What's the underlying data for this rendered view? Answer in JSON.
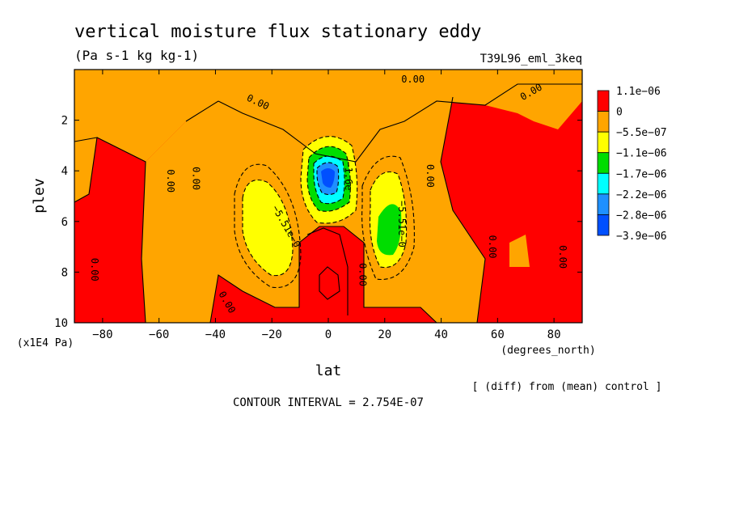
{
  "chart_data": {
    "type": "contour",
    "title": "vertical moisture flux stationary eddy",
    "units": "(Pa s-1 kg kg-1)",
    "experiment": "T39L96_eml_3keq",
    "xlabel": "lat",
    "x_units": "(degrees_north)",
    "ylabel": "plev",
    "y_units": "(x1E4 Pa)",
    "xlim": [
      -90,
      90
    ],
    "ylim": [
      0,
      10
    ],
    "y_reversed": true,
    "x_ticks": [
      -80,
      -60,
      -40,
      -20,
      0,
      20,
      40,
      60,
      80
    ],
    "x_tick_labels": [
      "−80",
      "−60",
      "−40",
      "−20",
      "0",
      "20",
      "40",
      "60",
      "80"
    ],
    "y_ticks": [
      2,
      4,
      6,
      8,
      10
    ],
    "y_tick_labels": [
      "2",
      "4",
      "6",
      "8",
      "10"
    ],
    "contour_interval": "CONTOUR INTERVAL = 2.754E-07",
    "note": "[ (diff) from (mean) control ]",
    "colorbar": {
      "colors": [
        "#ff0000",
        "#ffa500",
        "#ffff00",
        "#00dd00",
        "#00ffff",
        "#1e90ff",
        "#0050ff"
      ],
      "labels": [
        "1.1e−06",
        "0",
        "−5.5e−07",
        "−1.1e−06",
        "−1.7e−06",
        "−2.2e−06",
        "−2.8e−06",
        "−3.9e−06"
      ]
    },
    "contour_labels": [
      {
        "text": "0.00",
        "lat": 30,
        "plev": 0.4,
        "rot": 0
      },
      {
        "text": "0.00",
        "lat": -25,
        "plev": 1.3,
        "rot": 25
      },
      {
        "text": "0.00",
        "lat": 72,
        "plev": 0.9,
        "rot": -30
      },
      {
        "text": "0.00",
        "lat": -56,
        "plev": 4.4,
        "rot": 90
      },
      {
        "text": "0.00",
        "lat": -47,
        "plev": 4.3,
        "rot": 90
      },
      {
        "text": "0.00",
        "lat": 36,
        "plev": 4.2,
        "rot": 90
      },
      {
        "text": "0.00",
        "lat": 58,
        "plev": 7.0,
        "rot": 90
      },
      {
        "text": "0.00",
        "lat": 83,
        "plev": 7.4,
        "rot": 90
      },
      {
        "text": "0.00",
        "lat": -83,
        "plev": 7.9,
        "rot": 90
      },
      {
        "text": "0.00",
        "lat": 12,
        "plev": 8.1,
        "rot": 90
      },
      {
        "text": "0.00",
        "lat": -36,
        "plev": 9.2,
        "rot": 60
      },
      {
        "text": "−5.51e−0",
        "lat": -15,
        "plev": 6.2,
        "rot": 60
      },
      {
        "text": "−5.51e−0",
        "lat": 26,
        "plev": 6.1,
        "rot": 90
      },
      {
        "text": "−1.6e",
        "lat": 7,
        "plev": 4.2,
        "rot": 90
      }
    ]
  }
}
